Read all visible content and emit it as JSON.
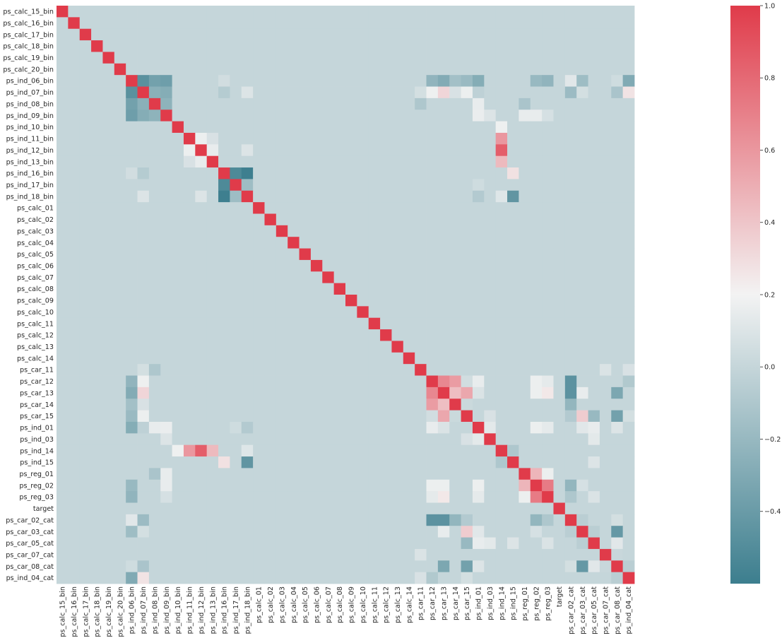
{
  "chart_data": {
    "type": "heatmap",
    "title": "",
    "xlabel": "",
    "ylabel": "",
    "grid": false,
    "legend": "right",
    "colorbar": {
      "vmin": -0.6,
      "vmax": 1.0,
      "ticks": [
        1.0,
        0.8,
        0.6,
        0.4,
        0.2,
        0.0,
        -0.2,
        -0.4
      ],
      "tick_labels": [
        "1.0",
        "0.8",
        "0.6",
        "0.4",
        "0.2",
        "0.0",
        "−0.2",
        "−0.4"
      ],
      "colormap": {
        "low": "#3c7e8e",
        "mid": "#f3f3f3",
        "high": "#e03b4a",
        "center": 0.2
      }
    },
    "variables": [
      "ps_calc_15_bin",
      "ps_calc_16_bin",
      "ps_calc_17_bin",
      "ps_calc_18_bin",
      "ps_calc_19_bin",
      "ps_calc_20_bin",
      "ps_ind_06_bin",
      "ps_ind_07_bin",
      "ps_ind_08_bin",
      "ps_ind_09_bin",
      "ps_ind_10_bin",
      "ps_ind_11_bin",
      "ps_ind_12_bin",
      "ps_ind_13_bin",
      "ps_ind_16_bin",
      "ps_ind_17_bin",
      "ps_ind_18_bin",
      "ps_calc_01",
      "ps_calc_02",
      "ps_calc_03",
      "ps_calc_04",
      "ps_calc_05",
      "ps_calc_06",
      "ps_calc_07",
      "ps_calc_08",
      "ps_calc_09",
      "ps_calc_10",
      "ps_calc_11",
      "ps_calc_12",
      "ps_calc_13",
      "ps_calc_14",
      "ps_car_11",
      "ps_car_12",
      "ps_car_13",
      "ps_car_14",
      "ps_car_15",
      "ps_ind_01",
      "ps_ind_03",
      "ps_ind_14",
      "ps_ind_15",
      "ps_reg_01",
      "ps_reg_02",
      "ps_reg_03",
      "target",
      "ps_car_02_cat",
      "ps_car_03_cat",
      "ps_car_05_cat",
      "ps_car_07_cat",
      "ps_car_08_cat",
      "ps_ind_04_cat"
    ],
    "default_value": 0.0,
    "diagonal_value": 1.0,
    "correlations": [
      [
        "ps_ind_06_bin",
        "ps_ind_07_bin",
        -0.47
      ],
      [
        "ps_ind_06_bin",
        "ps_ind_08_bin",
        -0.36
      ],
      [
        "ps_ind_06_bin",
        "ps_ind_09_bin",
        -0.38
      ],
      [
        "ps_ind_07_bin",
        "ps_ind_08_bin",
        -0.26
      ],
      [
        "ps_ind_07_bin",
        "ps_ind_09_bin",
        -0.28
      ],
      [
        "ps_ind_08_bin",
        "ps_ind_09_bin",
        -0.24
      ],
      [
        "ps_ind_06_bin",
        "ps_ind_16_bin",
        0.05
      ],
      [
        "ps_ind_07_bin",
        "ps_ind_16_bin",
        -0.07
      ],
      [
        "ps_ind_07_bin",
        "ps_ind_18_bin",
        0.1
      ],
      [
        "ps_ind_11_bin",
        "ps_ind_12_bin",
        0.17
      ],
      [
        "ps_ind_11_bin",
        "ps_ind_13_bin",
        0.08
      ],
      [
        "ps_ind_12_bin",
        "ps_ind_13_bin",
        0.15
      ],
      [
        "ps_ind_12_bin",
        "ps_ind_18_bin",
        0.1
      ],
      [
        "ps_ind_16_bin",
        "ps_ind_17_bin",
        -0.52
      ],
      [
        "ps_ind_16_bin",
        "ps_ind_18_bin",
        -0.59
      ],
      [
        "ps_ind_17_bin",
        "ps_ind_18_bin",
        -0.17
      ],
      [
        "ps_ind_06_bin",
        "ps_car_12",
        -0.23
      ],
      [
        "ps_ind_06_bin",
        "ps_car_13",
        -0.29
      ],
      [
        "ps_ind_06_bin",
        "ps_car_14",
        -0.15
      ],
      [
        "ps_ind_06_bin",
        "ps_car_15",
        -0.19
      ],
      [
        "ps_ind_06_bin",
        "ps_ind_01",
        -0.28
      ],
      [
        "ps_ind_06_bin",
        "ps_reg_02",
        -0.2
      ],
      [
        "ps_ind_06_bin",
        "ps_reg_03",
        -0.23
      ],
      [
        "ps_ind_06_bin",
        "ps_car_02_cat",
        0.12
      ],
      [
        "ps_ind_06_bin",
        "ps_car_03_cat",
        -0.17
      ],
      [
        "ps_ind_06_bin",
        "ps_car_08_cat",
        0.04
      ],
      [
        "ps_ind_06_bin",
        "ps_ind_04_cat",
        -0.3
      ],
      [
        "ps_ind_07_bin",
        "ps_car_11",
        0.06
      ],
      [
        "ps_ind_07_bin",
        "ps_car_12",
        0.18
      ],
      [
        "ps_ind_07_bin",
        "ps_car_13",
        0.33
      ],
      [
        "ps_ind_07_bin",
        "ps_car_14",
        0.08
      ],
      [
        "ps_ind_07_bin",
        "ps_car_15",
        0.17
      ],
      [
        "ps_ind_07_bin",
        "ps_ind_01",
        -0.03
      ],
      [
        "ps_ind_07_bin",
        "ps_car_02_cat",
        -0.18
      ],
      [
        "ps_ind_07_bin",
        "ps_car_03_cat",
        0.06
      ],
      [
        "ps_ind_07_bin",
        "ps_car_08_cat",
        -0.12
      ],
      [
        "ps_ind_07_bin",
        "ps_ind_04_cat",
        0.27
      ],
      [
        "ps_ind_08_bin",
        "ps_car_11",
        -0.1
      ],
      [
        "ps_ind_08_bin",
        "ps_ind_01",
        0.15
      ],
      [
        "ps_ind_08_bin",
        "ps_reg_01",
        -0.12
      ],
      [
        "ps_ind_09_bin",
        "ps_ind_01",
        0.16
      ],
      [
        "ps_ind_09_bin",
        "ps_ind_03",
        0.1
      ],
      [
        "ps_ind_09_bin",
        "ps_reg_01",
        0.15
      ],
      [
        "ps_ind_09_bin",
        "ps_reg_02",
        0.15
      ],
      [
        "ps_ind_09_bin",
        "ps_reg_03",
        0.07
      ],
      [
        "ps_ind_10_bin",
        "ps_ind_14",
        0.18
      ],
      [
        "ps_ind_11_bin",
        "ps_ind_14",
        0.6
      ],
      [
        "ps_ind_12_bin",
        "ps_ind_14",
        0.85
      ],
      [
        "ps_ind_13_bin",
        "ps_ind_14",
        0.45
      ],
      [
        "ps_ind_16_bin",
        "ps_ind_15",
        0.28
      ],
      [
        "ps_ind_18_bin",
        "ps_ind_15",
        -0.44
      ],
      [
        "ps_ind_18_bin",
        "ps_ind_14",
        0.11
      ],
      [
        "ps_ind_17_bin",
        "ps_ind_01",
        0.04
      ],
      [
        "ps_ind_18_bin",
        "ps_ind_01",
        -0.08
      ],
      [
        "ps_car_12",
        "ps_car_13",
        0.67
      ],
      [
        "ps_car_12",
        "ps_car_14",
        0.58
      ],
      [
        "ps_car_12",
        "ps_car_15",
        0.05
      ],
      [
        "ps_car_13",
        "ps_car_14",
        0.43
      ],
      [
        "ps_car_13",
        "ps_car_15",
        0.53
      ],
      [
        "ps_car_14",
        "ps_car_15",
        0.02
      ],
      [
        "ps_car_12",
        "ps_ind_01",
        0.15
      ],
      [
        "ps_car_13",
        "ps_ind_01",
        0.09
      ],
      [
        "ps_car_12",
        "ps_reg_02",
        0.17
      ],
      [
        "ps_car_13",
        "ps_reg_02",
        0.17
      ],
      [
        "ps_car_13",
        "ps_reg_03",
        0.25
      ],
      [
        "ps_car_12",
        "ps_reg_03",
        0.14
      ],
      [
        "ps_car_12",
        "ps_car_02_cat",
        -0.46
      ],
      [
        "ps_car_13",
        "ps_car_02_cat",
        -0.46
      ],
      [
        "ps_car_14",
        "ps_car_02_cat",
        -0.22
      ],
      [
        "ps_car_15",
        "ps_car_02_cat",
        -0.08
      ],
      [
        "ps_car_13",
        "ps_car_03_cat",
        0.15
      ],
      [
        "ps_car_15",
        "ps_car_03_cat",
        0.37
      ],
      [
        "ps_car_15",
        "ps_car_05_cat",
        -0.2
      ],
      [
        "ps_car_13",
        "ps_car_08_cat",
        -0.32
      ],
      [
        "ps_car_15",
        "ps_car_08_cat",
        -0.36
      ],
      [
        "ps_car_11",
        "ps_car_07_cat",
        0.09
      ],
      [
        "ps_car_11",
        "ps_ind_04_cat",
        0.08
      ],
      [
        "ps_car_12",
        "ps_ind_04_cat",
        -0.09
      ],
      [
        "ps_car_15",
        "ps_ind_04_cat",
        0.06
      ],
      [
        "ps_ind_01",
        "ps_ind_03",
        0.13
      ],
      [
        "ps_ind_01",
        "ps_reg_02",
        0.17
      ],
      [
        "ps_ind_01",
        "ps_reg_03",
        0.14
      ],
      [
        "ps_ind_01",
        "ps_car_05_cat",
        0.15
      ],
      [
        "ps_ind_01",
        "ps_car_08_cat",
        0.1
      ],
      [
        "ps_ind_01",
        "ps_car_03_cat",
        0.12
      ],
      [
        "ps_ind_03",
        "ps_car_05_cat",
        0.13
      ],
      [
        "ps_ind_03",
        "ps_car_15",
        0.08
      ],
      [
        "ps_ind_14",
        "ps_ind_15",
        -0.1
      ],
      [
        "ps_ind_15",
        "ps_car_05_cat",
        0.1
      ],
      [
        "ps_reg_01",
        "ps_reg_02",
        0.47
      ],
      [
        "ps_reg_01",
        "ps_reg_03",
        0.17
      ],
      [
        "ps_reg_02",
        "ps_reg_03",
        0.72
      ],
      [
        "ps_reg_02",
        "ps_car_02_cat",
        -0.22
      ],
      [
        "ps_reg_03",
        "ps_car_02_cat",
        -0.1
      ],
      [
        "ps_car_02_cat",
        "ps_car_03_cat",
        -0.05
      ],
      [
        "ps_car_02_cat",
        "ps_car_08_cat",
        0.06
      ],
      [
        "ps_car_03_cat",
        "ps_car_05_cat",
        -0.05
      ],
      [
        "ps_car_03_cat",
        "ps_car_08_cat",
        -0.42
      ],
      [
        "ps_car_05_cat",
        "ps_car_08_cat",
        0.12
      ],
      [
        "ps_car_07_cat",
        "ps_car_08_cat",
        0.01
      ],
      [
        "ps_car_08_cat",
        "ps_ind_04_cat",
        -0.05
      ],
      [
        "ps_car_03_cat",
        "ps_reg_02",
        0.07
      ],
      [
        "ps_car_05_cat",
        "ps_reg_03",
        0.09
      ]
    ]
  }
}
